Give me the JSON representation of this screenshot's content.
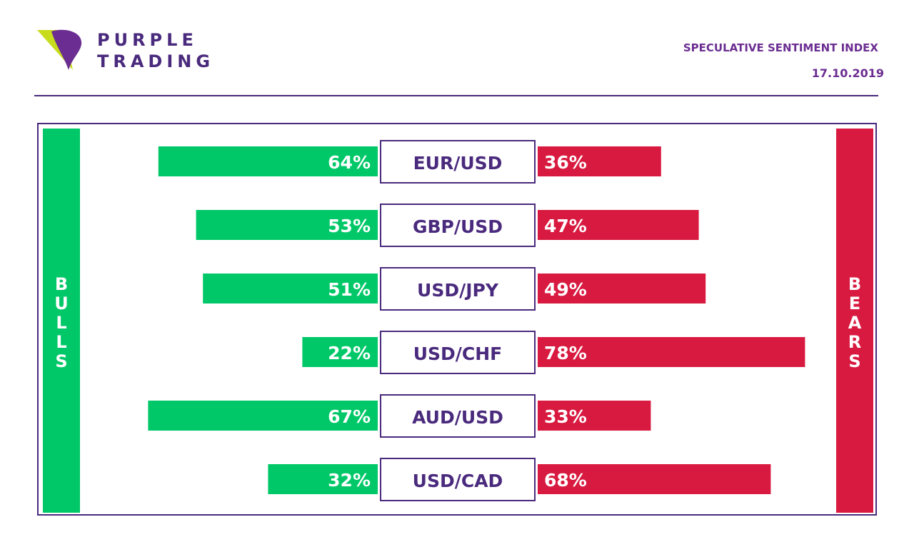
{
  "brand": {
    "line1": "PURPLE",
    "line2": "TRADING"
  },
  "header": {
    "title": "SPECULATIVE SENTIMENT INDEX",
    "date": "17.10.2019"
  },
  "side_labels": {
    "bulls": "BULLS",
    "bears": "BEARS"
  },
  "colors": {
    "bulls": "#00c868",
    "bears": "#d91a40",
    "accent": "#4a2a7d",
    "brand_lime": "#c8dc1e"
  },
  "chart_data": {
    "type": "bar",
    "categories": [
      "EUR/USD",
      "GBP/USD",
      "USD/JPY",
      "USD/CHF",
      "AUD/USD",
      "USD/CAD"
    ],
    "series": [
      {
        "name": "BULLS",
        "values": [
          64,
          53,
          51,
          22,
          67,
          32
        ],
        "labels": [
          "64%",
          "53%",
          "51%",
          "22%",
          "67%",
          "32%"
        ]
      },
      {
        "name": "BEARS",
        "values": [
          36,
          47,
          49,
          78,
          33,
          68
        ],
        "labels": [
          "36%",
          "47%",
          "49%",
          "78%",
          "33%",
          "68%"
        ]
      }
    ],
    "unit": "%",
    "xlim": [
      0,
      100
    ]
  }
}
